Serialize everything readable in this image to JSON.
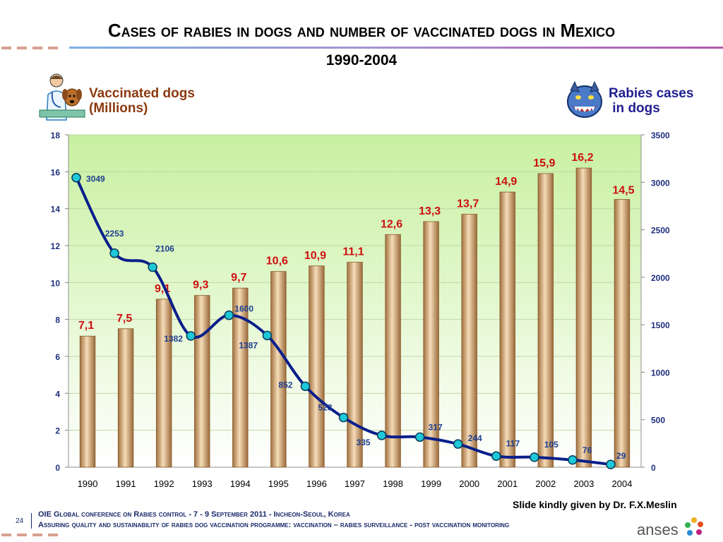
{
  "title": "Cases of rabies in dogs and number of vaccinated dogs in Mexico",
  "subtitle": "1990-2004",
  "left_axis_label_line1": "Vaccinated dogs",
  "left_axis_label_line2": "(Millions)",
  "right_axis_label_line1": "Rabies cases",
  "right_axis_label_line2": " in dogs",
  "credit": "Slide kindly given by Dr. F.X.Meslin",
  "footer": {
    "page_number": "24",
    "line1": "OIE Global conference on Rabies control -  7 - 9 September 2011 - Incheon-Seoul, Korea",
    "line2": "Assuring quality and sustainability of rabies dog vaccination programme: vaccination – rabies surveillance - post vaccination monitoring",
    "brand": "anses"
  },
  "colors": {
    "bar": "#d9b48a",
    "bar_label": "#cc1010",
    "line": "#0a1f8a",
    "marker": "#1ec8d8",
    "line_label": "#1f3f8f",
    "plot_bg_top": "#c8f0a0",
    "plot_bg_bottom": "#ffffff"
  },
  "icons": [
    "veterinarian-with-dog-icon",
    "wolf-head-icon",
    "anses-logo-icon"
  ],
  "chart_data": {
    "type": "bar",
    "categories": [
      "1990",
      "1991",
      "1992",
      "1993",
      "1994",
      "1995",
      "1996",
      "1997",
      "1998",
      "1999",
      "2000",
      "2001",
      "2002",
      "2003",
      "2004"
    ],
    "series": [
      {
        "type": "bar",
        "axis": "left",
        "values": [
          7.1,
          7.5,
          9.1,
          9.3,
          9.7,
          10.6,
          10.9,
          11.1,
          12.6,
          13.3,
          13.7,
          14.9,
          15.9,
          16.2,
          14.5
        ],
        "labels": [
          "7,1",
          "7,5",
          "9,1",
          "9,3",
          "9,7",
          "10,6",
          "10,9",
          "11,1",
          "12,6",
          "13,3",
          "13,7",
          "14,9",
          "15,9",
          "16,2",
          "14,5"
        ]
      },
      {
        "type": "line",
        "axis": "right",
        "values": [
          3049,
          2253,
          2106,
          1382,
          1600,
          1387,
          852,
          523,
          335,
          317,
          244,
          117,
          105,
          76,
          29
        ],
        "labels": [
          "3049",
          "2253",
          "2106",
          "1382",
          "1600",
          "1387",
          "852",
          "523",
          "335",
          "317",
          "244",
          "117",
          "105",
          "76",
          "29"
        ]
      }
    ],
    "left_axis": {
      "ylim": [
        0,
        18
      ],
      "ticks": [
        "0",
        "2",
        "4",
        "6",
        "8",
        "10",
        "12",
        "14",
        "16",
        "18"
      ]
    },
    "right_axis": {
      "ylim": [
        0,
        3500
      ],
      "ticks": [
        "0",
        "500",
        "1000",
        "1500",
        "2000",
        "2500",
        "3000",
        "3500"
      ]
    },
    "grid": true
  }
}
